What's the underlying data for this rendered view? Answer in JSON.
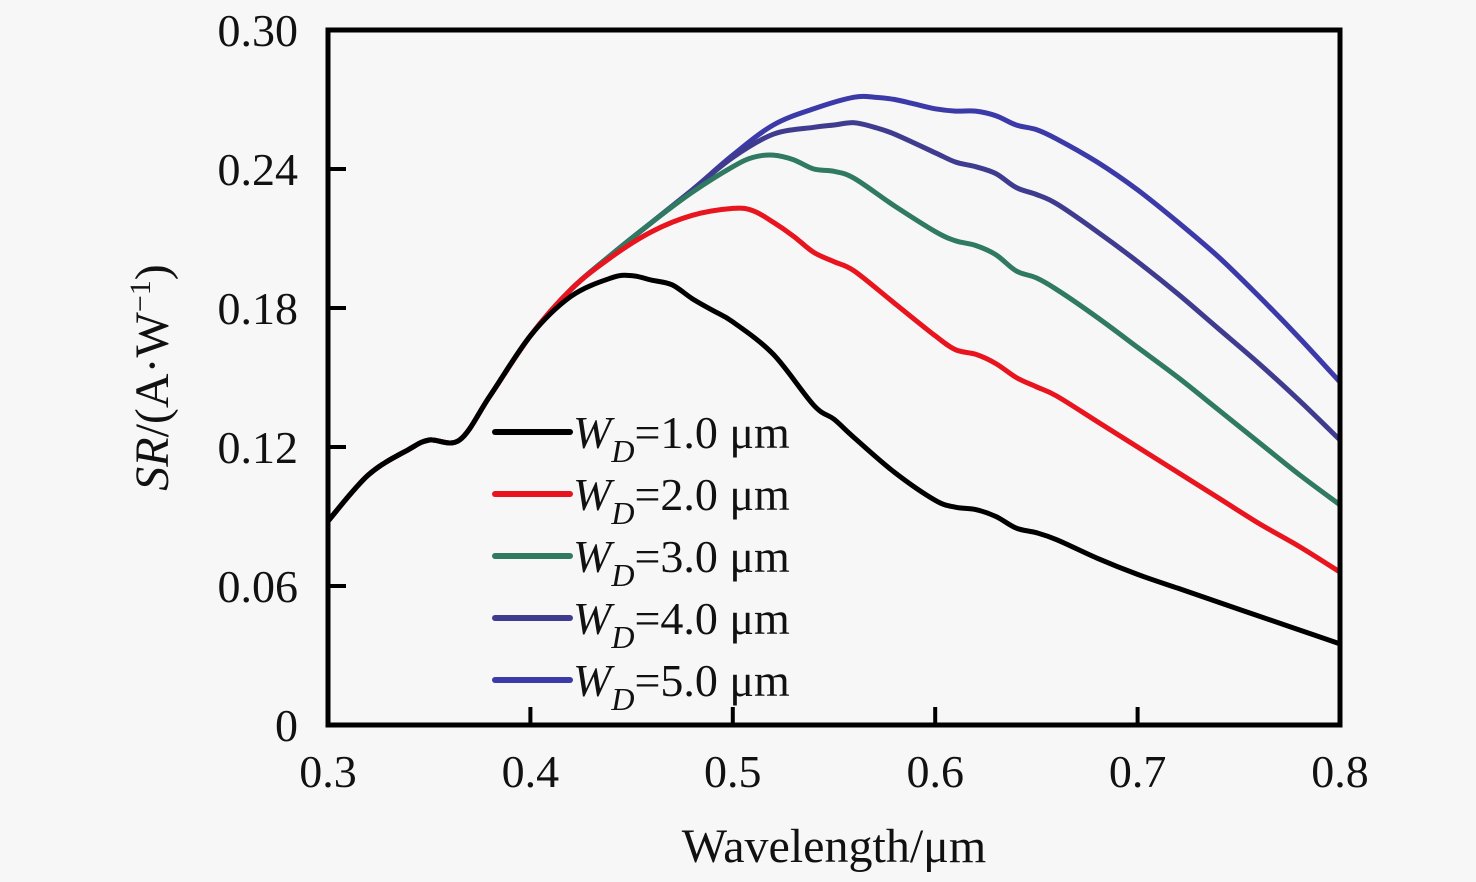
{
  "chart_data": {
    "type": "line",
    "title": "",
    "xlabel": "Wavelength/μm",
    "ylabel_parts": {
      "italic": "SR",
      "rest": "/(A·W",
      "sup": "−1",
      "close": ")"
    },
    "ylabel": "SR/(A·W⁻¹)",
    "xlim": [
      0.3,
      0.8
    ],
    "ylim": [
      0,
      0.3
    ],
    "x_ticks": [
      0.3,
      0.4,
      0.5,
      0.6,
      0.7,
      0.8
    ],
    "x_tick_labels": [
      "0.3",
      "0.4",
      "0.5",
      "0.6",
      "0.7",
      "0.8"
    ],
    "y_ticks": [
      0,
      0.06,
      0.12,
      0.18,
      0.24,
      0.3
    ],
    "y_tick_labels": [
      "0",
      "0.06",
      "0.12",
      "0.18",
      "0.24",
      "0.30"
    ],
    "grid": false,
    "legend_position": "center-left",
    "series": [
      {
        "name": "WD=1.0 μm",
        "label_main": "W",
        "label_sub": "D",
        "label_rest": "=1.0 μm",
        "color": "#000000",
        "x": [
          0.3,
          0.32,
          0.34,
          0.35,
          0.365,
          0.38,
          0.4,
          0.42,
          0.44,
          0.45,
          0.46,
          0.47,
          0.48,
          0.49,
          0.5,
          0.52,
          0.54,
          0.55,
          0.56,
          0.58,
          0.6,
          0.61,
          0.62,
          0.63,
          0.64,
          0.65,
          0.66,
          0.68,
          0.7,
          0.72,
          0.74,
          0.76,
          0.78,
          0.8
        ],
        "values": [
          0.088,
          0.108,
          0.119,
          0.123,
          0.123,
          0.142,
          0.168,
          0.185,
          0.193,
          0.194,
          0.192,
          0.19,
          0.184,
          0.179,
          0.174,
          0.16,
          0.138,
          0.132,
          0.124,
          0.109,
          0.097,
          0.094,
          0.093,
          0.09,
          0.085,
          0.083,
          0.08,
          0.072,
          0.065,
          0.059,
          0.053,
          0.047,
          0.041,
          0.035
        ]
      },
      {
        "name": "WD=2.0 μm",
        "label_main": "W",
        "label_sub": "D",
        "label_rest": "=2.0 μm",
        "color": "#e8151f",
        "x": [
          0.3,
          0.32,
          0.34,
          0.35,
          0.365,
          0.38,
          0.4,
          0.42,
          0.44,
          0.46,
          0.48,
          0.5,
          0.51,
          0.52,
          0.53,
          0.54,
          0.55,
          0.56,
          0.58,
          0.6,
          0.61,
          0.62,
          0.63,
          0.64,
          0.65,
          0.66,
          0.68,
          0.7,
          0.72,
          0.74,
          0.76,
          0.78,
          0.8
        ],
        "values": [
          0.088,
          0.108,
          0.119,
          0.123,
          0.123,
          0.142,
          0.168,
          0.188,
          0.202,
          0.213,
          0.22,
          0.223,
          0.222,
          0.217,
          0.211,
          0.204,
          0.2,
          0.196,
          0.182,
          0.168,
          0.162,
          0.16,
          0.156,
          0.15,
          0.146,
          0.142,
          0.131,
          0.12,
          0.109,
          0.098,
          0.087,
          0.077,
          0.066
        ]
      },
      {
        "name": "WD=3.0 μm",
        "label_main": "W",
        "label_sub": "D",
        "label_rest": "=3.0 μm",
        "color": "#2f7a60",
        "x": [
          0.3,
          0.32,
          0.34,
          0.35,
          0.365,
          0.38,
          0.4,
          0.42,
          0.44,
          0.46,
          0.48,
          0.5,
          0.51,
          0.52,
          0.53,
          0.54,
          0.55,
          0.56,
          0.58,
          0.6,
          0.61,
          0.62,
          0.63,
          0.64,
          0.65,
          0.66,
          0.68,
          0.7,
          0.72,
          0.74,
          0.76,
          0.78,
          0.8
        ],
        "values": [
          0.088,
          0.108,
          0.119,
          0.123,
          0.123,
          0.142,
          0.168,
          0.188,
          0.203,
          0.217,
          0.23,
          0.241,
          0.245,
          0.246,
          0.244,
          0.24,
          0.239,
          0.236,
          0.224,
          0.213,
          0.209,
          0.207,
          0.203,
          0.196,
          0.193,
          0.188,
          0.176,
          0.163,
          0.15,
          0.136,
          0.122,
          0.108,
          0.095
        ]
      },
      {
        "name": "WD=4.0 μm",
        "label_main": "W",
        "label_sub": "D",
        "label_rest": "=4.0 μm",
        "color": "#3f3c8f",
        "x": [
          0.3,
          0.32,
          0.34,
          0.35,
          0.365,
          0.38,
          0.4,
          0.42,
          0.44,
          0.46,
          0.48,
          0.5,
          0.52,
          0.54,
          0.55,
          0.56,
          0.57,
          0.58,
          0.6,
          0.61,
          0.62,
          0.63,
          0.64,
          0.65,
          0.66,
          0.68,
          0.7,
          0.72,
          0.74,
          0.76,
          0.78,
          0.8
        ],
        "values": [
          0.088,
          0.108,
          0.119,
          0.123,
          0.123,
          0.142,
          0.168,
          0.188,
          0.203,
          0.217,
          0.231,
          0.245,
          0.255,
          0.258,
          0.259,
          0.26,
          0.258,
          0.255,
          0.247,
          0.243,
          0.241,
          0.238,
          0.232,
          0.229,
          0.225,
          0.213,
          0.2,
          0.186,
          0.171,
          0.156,
          0.14,
          0.123
        ]
      },
      {
        "name": "WD=5.0 μm",
        "label_main": "W",
        "label_sub": "D",
        "label_rest": "=5.0 μm",
        "color": "#3b3aa8",
        "x": [
          0.3,
          0.32,
          0.34,
          0.35,
          0.365,
          0.38,
          0.4,
          0.42,
          0.44,
          0.46,
          0.48,
          0.5,
          0.52,
          0.54,
          0.56,
          0.57,
          0.58,
          0.59,
          0.6,
          0.61,
          0.62,
          0.63,
          0.64,
          0.65,
          0.66,
          0.68,
          0.7,
          0.72,
          0.74,
          0.76,
          0.78,
          0.8
        ],
        "values": [
          0.088,
          0.108,
          0.119,
          0.123,
          0.123,
          0.142,
          0.168,
          0.188,
          0.203,
          0.217,
          0.231,
          0.246,
          0.259,
          0.266,
          0.271,
          0.271,
          0.27,
          0.268,
          0.266,
          0.265,
          0.265,
          0.263,
          0.259,
          0.257,
          0.253,
          0.243,
          0.231,
          0.217,
          0.202,
          0.185,
          0.167,
          0.148
        ]
      }
    ]
  }
}
